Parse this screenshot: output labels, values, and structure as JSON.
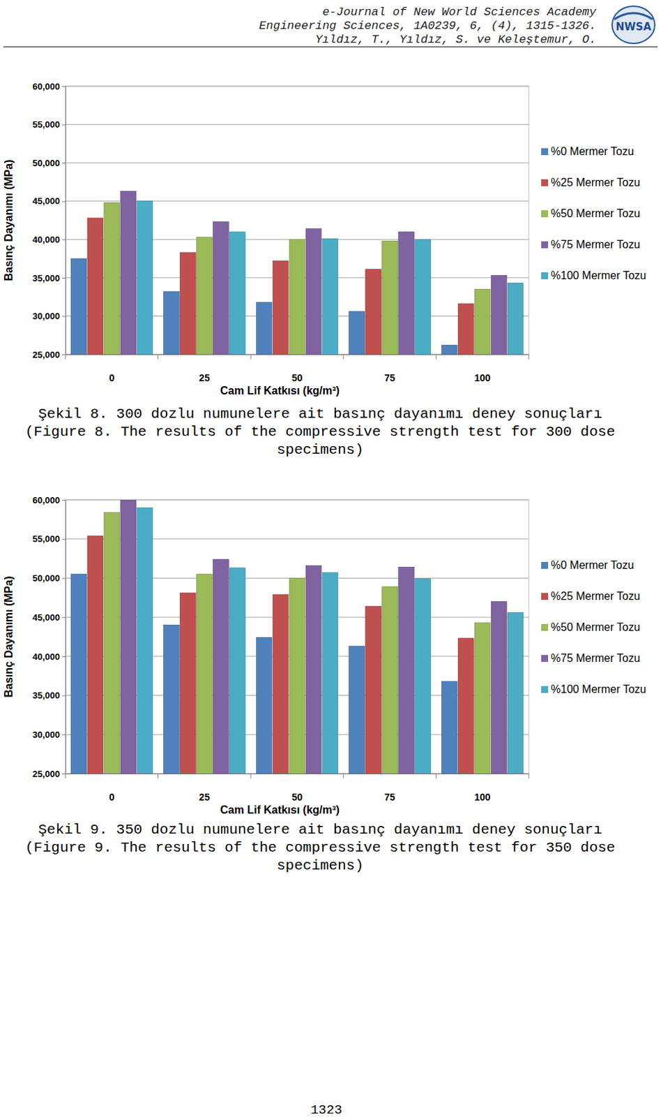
{
  "header": {
    "lines": [
      "e-Journal of New World Sciences Academy",
      "Engineering Sciences, 1A0239, 6, (4), 1315-1326.",
      "Yıldız, T., Yıldız, S. ve Keleştemur, O."
    ],
    "logo_text": "NWSA"
  },
  "chart_data": [
    {
      "type": "bar",
      "x_label": "Cam Lif Katkısı (kg/m³)",
      "y_label": "Basınç Dayanımı (MPa)",
      "categories": [
        "0",
        "25",
        "50",
        "75",
        "100"
      ],
      "series": [
        {
          "name": "%0 Mermer Tozu",
          "color": "#4f81bd",
          "values": [
            37.5,
            33.2,
            31.8,
            30.6,
            26.2
          ]
        },
        {
          "name": "%25 Mermer Tozu",
          "color": "#c0504d",
          "values": [
            42.8,
            38.3,
            37.2,
            36.1,
            31.6
          ]
        },
        {
          "name": "%50 Mermer Tozu",
          "color": "#9bbb59",
          "values": [
            44.8,
            40.3,
            40.0,
            39.8,
            33.5
          ]
        },
        {
          "name": "%75 Mermer Tozu",
          "color": "#8064a2",
          "values": [
            46.3,
            42.3,
            41.4,
            41.0,
            35.3
          ]
        },
        {
          "name": "%100 Mermer Tozu",
          "color": "#4bacc6",
          "values": [
            45.0,
            41.0,
            40.1,
            40.0,
            34.3
          ]
        }
      ],
      "ylim": [
        25,
        60
      ],
      "yticks": [
        {
          "value": 25,
          "label": "25,000"
        },
        {
          "value": 30,
          "label": "30,000"
        },
        {
          "value": 35,
          "label": "35,000"
        },
        {
          "value": 40,
          "label": "40,000"
        },
        {
          "value": 45,
          "label": "45,000"
        },
        {
          "value": 50,
          "label": "50,000"
        },
        {
          "value": 55,
          "label": "55,000"
        },
        {
          "value": 60,
          "label": "60,000"
        }
      ],
      "grid": true,
      "legend": "right"
    },
    {
      "type": "bar",
      "x_label": "Cam Lif Katkısı (kg/m³)",
      "y_label": "Basınç Dayanımı (MPa)",
      "categories": [
        "0",
        "25",
        "50",
        "75",
        "100"
      ],
      "series": [
        {
          "name": "%0 Mermer Tozu",
          "color": "#4f81bd",
          "values": [
            50.5,
            44.0,
            42.4,
            41.3,
            36.8
          ]
        },
        {
          "name": "%25 Mermer Tozu",
          "color": "#c0504d",
          "values": [
            55.4,
            48.1,
            47.9,
            46.4,
            42.3
          ]
        },
        {
          "name": "%50 Mermer Tozu",
          "color": "#9bbb59",
          "values": [
            58.4,
            50.5,
            50.0,
            48.9,
            44.3
          ]
        },
        {
          "name": "%75 Mermer Tozu",
          "color": "#8064a2",
          "values": [
            60.0,
            52.4,
            51.6,
            51.4,
            47.0
          ]
        },
        {
          "name": "%100 Mermer Tozu",
          "color": "#4bacc6",
          "values": [
            59.0,
            51.3,
            50.7,
            49.9,
            45.6
          ]
        }
      ],
      "ylim": [
        25,
        60
      ],
      "yticks": [
        {
          "value": 25,
          "label": "25,000"
        },
        {
          "value": 30,
          "label": "30,000"
        },
        {
          "value": 35,
          "label": "35,000"
        },
        {
          "value": 40,
          "label": "40,000"
        },
        {
          "value": 45,
          "label": "45,000"
        },
        {
          "value": 50,
          "label": "50,000"
        },
        {
          "value": 55,
          "label": "55,000"
        },
        {
          "value": 60,
          "label": "60,000"
        }
      ],
      "grid": true,
      "legend": "right"
    }
  ],
  "captions": [
    [
      "Şekil 8. 300 dozlu numunelere ait basınç dayanımı deney sonuçları",
      "(Figure 8. The results of the compressive strength test for 300 dose",
      "specimens)"
    ],
    [
      "Şekil 9. 350 dozlu numunelere ait basınç dayanımı deney sonuçları",
      "(Figure 9. The results of the compressive strength test for 350 dose",
      "specimens)"
    ]
  ],
  "page_number": "1323"
}
